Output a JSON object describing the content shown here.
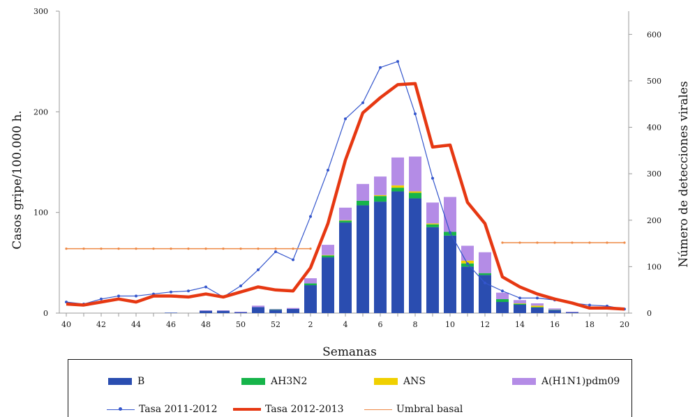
{
  "chart_data": {
    "type": "bar+line",
    "xlabel": "Semanas",
    "ylabel_left": "Casos gripe/100.000 h.",
    "ylabel_right": "Número de detecciones virales",
    "ylim_left": [
      0,
      300
    ],
    "ylim_right": [
      0,
      650
    ],
    "yticks_left": [
      "0",
      "100",
      "200",
      "300"
    ],
    "yticks_right": [
      "0",
      "100",
      "200",
      "300",
      "400",
      "500",
      "600"
    ],
    "x": [
      "40",
      "41",
      "42",
      "43",
      "44",
      "45",
      "46",
      "47",
      "48",
      "49",
      "50",
      "51",
      "52",
      "1",
      "2",
      "3",
      "4",
      "5",
      "6",
      "7",
      "8",
      "9",
      "10",
      "11",
      "12",
      "13",
      "14",
      "15",
      "16",
      "17",
      "18",
      "19",
      "20"
    ],
    "x_tick_labels": [
      "40",
      "42",
      "44",
      "46",
      "48",
      "50",
      "52",
      "2",
      "4",
      "6",
      "8",
      "10",
      "12",
      "14",
      "16",
      "18",
      "20"
    ],
    "bar_series": [
      {
        "name": "B",
        "color": "#2a4db0",
        "values": [
          0,
          0,
          0,
          0,
          0,
          0,
          1,
          0,
          5,
          5,
          2,
          13,
          7,
          9,
          60,
          120,
          195,
          232,
          240,
          262,
          247,
          185,
          167,
          100,
          82,
          24,
          18,
          12,
          6,
          2,
          0,
          0,
          0
        ]
      },
      {
        "name": "AH3N2",
        "color": "#16b44a",
        "values": [
          0,
          0,
          0,
          0,
          0,
          0,
          0,
          0,
          0,
          0,
          0,
          0,
          1,
          0,
          4,
          4,
          4,
          10,
          12,
          8,
          12,
          6,
          8,
          7,
          4,
          6,
          2,
          1,
          1,
          0,
          0,
          0,
          0
        ]
      },
      {
        "name": "ANS",
        "color": "#f0d000",
        "values": [
          0,
          0,
          0,
          0,
          0,
          0,
          0,
          0,
          0,
          0,
          0,
          0,
          0,
          0,
          0,
          1,
          1,
          0,
          2,
          5,
          3,
          2,
          0,
          6,
          0,
          0,
          1,
          3,
          0,
          0,
          0,
          0,
          0
        ]
      },
      {
        "name": "A(H1N1)pdm09",
        "color": "#b48ce6",
        "values": [
          0,
          0,
          0,
          0,
          0,
          0,
          0,
          0,
          1,
          1,
          1,
          3,
          1,
          2,
          11,
          22,
          27,
          36,
          40,
          60,
          75,
          45,
          75,
          32,
          45,
          14,
          7,
          5,
          3,
          1,
          0,
          0,
          0
        ]
      }
    ],
    "line_series": [
      {
        "name": "Tasa 2011-2012",
        "color": "#3355cc",
        "values": [
          11,
          9,
          14,
          17,
          17,
          19,
          21,
          22,
          26,
          16,
          27,
          43,
          61,
          53,
          96,
          142,
          193,
          209,
          244,
          250,
          198,
          134,
          80,
          49,
          30,
          22,
          15,
          15,
          13,
          10,
          8,
          7,
          4
        ]
      },
      {
        "name": "Tasa 2012-2013",
        "color": "#e63812",
        "values": [
          9,
          8,
          11,
          14,
          11,
          17,
          17,
          16,
          19,
          16,
          21,
          26,
          23,
          22,
          45,
          89,
          152,
          199,
          214,
          227,
          228,
          165,
          167,
          110,
          89,
          36,
          26,
          19,
          14,
          10,
          5,
          5,
          4
        ]
      },
      {
        "name": "Umbral basal",
        "color": "#ee8844",
        "segments": [
          {
            "from": "40",
            "to": "2",
            "value": 64
          },
          {
            "from": "13",
            "to": "20",
            "value": 70
          }
        ]
      }
    ]
  },
  "legend": [
    {
      "label": "B",
      "kind": "bar",
      "color": "#2a4db0"
    },
    {
      "label": "AH3N2",
      "kind": "bar",
      "color": "#16b44a"
    },
    {
      "label": "ANS",
      "kind": "bar",
      "color": "#f0d000"
    },
    {
      "label": "A(H1N1)pdm09",
      "kind": "bar",
      "color": "#b48ce6"
    },
    {
      "label": "Tasa 2011-2012",
      "kind": "line",
      "color": "#3355cc"
    },
    {
      "label": "Tasa 2012-2013",
      "kind": "line",
      "color": "#e63812"
    },
    {
      "label": "Umbral basal",
      "kind": "line",
      "color": "#ee8844"
    }
  ]
}
